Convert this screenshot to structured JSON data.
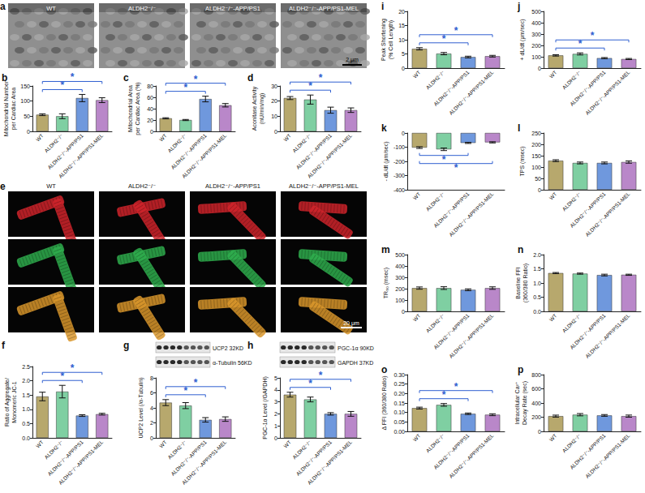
{
  "image_panels": [
    {
      "panel": "a",
      "labels": [
        "WT",
        "ALDH2⁻/⁻",
        "ALDH2⁻/⁻-APP/PS1",
        "ALDH2⁻/⁻-APP/PS1-MEL"
      ],
      "scale_bar": "2 μm"
    },
    {
      "panel": "e",
      "labels": [
        "WT",
        "ALDH2⁻/⁻",
        "ALDH2⁻/⁻-APP/PS1",
        "ALDH2⁻/⁻-APP/PS1-MEL"
      ],
      "scale_bar": "20 μm"
    }
  ],
  "chart_data": [
    {
      "panel": "b",
      "type": "bar",
      "ylabel": "Mitochondrial Number\nper Cardiac Area",
      "categories": [
        "WT",
        "ALDH2⁻/⁻",
        "ALDH2⁻/⁻-APP/PS1",
        "ALDH2⁻/⁻-APP/PS1-MEL"
      ],
      "values": [
        55,
        50,
        110,
        103
      ],
      "errors": [
        3,
        8,
        12,
        8
      ],
      "colors": [
        "#b7a86d",
        "#7fcfa2",
        "#6f98dd",
        "#b987c9"
      ],
      "ylim": [
        0,
        150
      ],
      "yticks": [
        0,
        50,
        100,
        150
      ],
      "grid": false,
      "significance": [
        {
          "between": [
            "WT",
            "ALDH2⁻/⁻-APP/PS1"
          ],
          "label": "*"
        },
        {
          "between": [
            "WT",
            "ALDH2⁻/⁻-APP/PS1-MEL"
          ],
          "label": "*"
        }
      ]
    },
    {
      "panel": "c",
      "type": "bar",
      "ylabel": "Mitochondrial Area\nper Cardiac Area (%)",
      "categories": [
        "WT",
        "ALDH2⁻/⁻",
        "ALDH2⁻/⁻-APP/PS1",
        "ALDH2⁻/⁻-APP/PS1-MEL"
      ],
      "values": [
        23,
        20,
        57,
        46
      ],
      "errors": [
        1,
        1,
        5,
        3
      ],
      "colors": [
        "#b7a86d",
        "#7fcfa2",
        "#6f98dd",
        "#b987c9"
      ],
      "ylim": [
        0,
        80
      ],
      "yticks": [
        0,
        20,
        40,
        60,
        80
      ],
      "grid": false,
      "significance": [
        {
          "between": [
            "WT",
            "ALDH2⁻/⁻-APP/PS1"
          ],
          "label": "*"
        },
        {
          "between": [
            "WT",
            "ALDH2⁻/⁻-APP/PS1-MEL"
          ],
          "label": "*"
        }
      ]
    },
    {
      "panel": "d",
      "type": "bar",
      "ylabel": "Aconitase Activity\n(nU/min/mg)",
      "categories": [
        "WT",
        "ALDH2⁻/⁻",
        "ALDH2⁻/⁻-APP/PS1",
        "ALDH2⁻/⁻-APP/PS1-MEL"
      ],
      "values": [
        22,
        21,
        14,
        14
      ],
      "errors": [
        1,
        3,
        2,
        1.5
      ],
      "colors": [
        "#b7a86d",
        "#7fcfa2",
        "#6f98dd",
        "#b987c9"
      ],
      "ylim": [
        0,
        30
      ],
      "yticks": [
        0,
        10,
        20,
        30
      ],
      "grid": false,
      "significance": [
        {
          "between": [
            "WT",
            "ALDH2⁻/⁻-APP/PS1"
          ],
          "label": "*"
        },
        {
          "between": [
            "WT",
            "ALDH2⁻/⁻-APP/PS1-MEL"
          ],
          "label": "*"
        }
      ]
    },
    {
      "panel": "f",
      "type": "bar",
      "ylabel": "Ratio of Aggregate/\nMonomeric JC-1",
      "categories": [
        "WT",
        "ALDH2⁻/⁻",
        "ALDH2⁻/⁻-APP/PS1",
        "ALDH2⁻/⁻-APP/PS1-MEL"
      ],
      "values": [
        1.45,
        1.62,
        0.78,
        0.83
      ],
      "errors": [
        0.15,
        0.22,
        0.03,
        0.03
      ],
      "colors": [
        "#b7a86d",
        "#7fcfa2",
        "#6f98dd",
        "#b987c9"
      ],
      "ylim": [
        0,
        2.5
      ],
      "yticks": [
        {
          "value": 0,
          "label": "0.0"
        },
        0.5,
        {
          "value": 1,
          "label": "1.0"
        },
        1.5,
        {
          "value": 2,
          "label": "2.0"
        },
        2.5
      ],
      "grid": false,
      "significance": [
        {
          "between": [
            "WT",
            "ALDH2⁻/⁻-APP/PS1"
          ],
          "label": "*"
        },
        {
          "between": [
            "WT",
            "ALDH2⁻/⁻-APP/PS1-MEL"
          ],
          "label": "*"
        }
      ]
    },
    {
      "panel": "g",
      "type": "bar",
      "ylabel": "UCP2 Level (/α-Tubulin)",
      "blot_labels": [
        "UCP2 32KD",
        "α-Tubulin 56KD"
      ],
      "categories": [
        "WT",
        "ALDH2⁻/⁻",
        "ALDH2⁻/⁻-APP/PS1",
        "ALDH2⁻/⁻-APP/PS1-MEL"
      ],
      "values": [
        4.7,
        4.3,
        2.4,
        2.5
      ],
      "errors": [
        0.4,
        0.4,
        0.3,
        0.3
      ],
      "colors": [
        "#b7a86d",
        "#7fcfa2",
        "#6f98dd",
        "#b987c9"
      ],
      "ylim": [
        0,
        8
      ],
      "yticks": [
        0,
        2,
        4,
        6,
        8
      ],
      "grid": false,
      "significance": [
        {
          "between": [
            "WT",
            "ALDH2⁻/⁻-APP/PS1"
          ],
          "label": "*"
        },
        {
          "between": [
            "WT",
            "ALDH2⁻/⁻-APP/PS1-MEL"
          ],
          "label": "*"
        }
      ]
    },
    {
      "panel": "h",
      "type": "bar",
      "ylabel": "PGC-1α Level (/GAPDH)",
      "blot_labels": [
        "PGC-1α 90KD",
        "GAPDH 37KD"
      ],
      "categories": [
        "WT",
        "ALDH2⁻/⁻",
        "ALDH2⁻/⁻-APP/PS1",
        "ALDH2⁻/⁻-APP/PS1-MEL"
      ],
      "values": [
        3.6,
        3.2,
        2.0,
        2.0
      ],
      "errors": [
        0.2,
        0.2,
        0.1,
        0.2
      ],
      "colors": [
        "#b7a86d",
        "#7fcfa2",
        "#6f98dd",
        "#b987c9"
      ],
      "ylim": [
        0,
        5
      ],
      "yticks": [
        0,
        1,
        2,
        3,
        4,
        5
      ],
      "grid": false,
      "significance": [
        {
          "between": [
            "WT",
            "ALDH2⁻/⁻-APP/PS1"
          ],
          "label": "*"
        },
        {
          "between": [
            "WT",
            "ALDH2⁻/⁻-APP/PS1-MEL"
          ],
          "label": "*"
        }
      ]
    },
    {
      "panel": "i",
      "type": "bar",
      "ylabel": "Peak Shortening\n(% Cell Length)",
      "categories": [
        "WT",
        "ALDH2⁻/⁻",
        "ALDH2⁻/⁻-APP/PS1",
        "ALDH2⁻/⁻-APP/PS1-MEL"
      ],
      "values": [
        6.8,
        5.1,
        3.9,
        4.2
      ],
      "errors": [
        0.4,
        0.4,
        0.3,
        0.3
      ],
      "colors": [
        "#b7a86d",
        "#7fcfa2",
        "#6f98dd",
        "#b987c9"
      ],
      "ylim": [
        0,
        20
      ],
      "yticks": [
        0,
        5,
        10,
        15,
        20
      ],
      "grid": false,
      "significance": [
        {
          "between": [
            "WT",
            "ALDH2⁻/⁻-APP/PS1"
          ],
          "label": "*"
        },
        {
          "between": [
            "WT",
            "ALDH2⁻/⁻-APP/PS1-MEL"
          ],
          "label": "*"
        }
      ]
    },
    {
      "panel": "j",
      "type": "bar",
      "ylabel": "+ dL/dt (μm/sec)",
      "categories": [
        "WT",
        "ALDH2⁻/⁻",
        "ALDH2⁻/⁻-APP/PS1",
        "ALDH2⁻/⁻-APP/PS1-MEL"
      ],
      "values": [
        112,
        125,
        88,
        80
      ],
      "errors": [
        6,
        9,
        5,
        5
      ],
      "colors": [
        "#b7a86d",
        "#7fcfa2",
        "#6f98dd",
        "#b987c9"
      ],
      "ylim": [
        0,
        500
      ],
      "yticks": [
        0,
        100,
        200,
        300,
        400,
        500
      ],
      "grid": false,
      "significance": [
        {
          "between": [
            "WT",
            "ALDH2⁻/⁻-APP/PS1"
          ],
          "label": "*"
        },
        {
          "between": [
            "WT",
            "ALDH2⁻/⁻-APP/PS1-MEL"
          ],
          "label": "*"
        }
      ]
    },
    {
      "panel": "k",
      "type": "bar",
      "ylabel": "- dL/dt (μm/sec)",
      "categories": [
        "WT",
        "ALDH2⁻/⁻",
        "ALDH2⁻/⁻-APP/PS1",
        "ALDH2⁻/⁻-APP/PS1-MEL"
      ],
      "values": [
        -103,
        -115,
        -70,
        -66
      ],
      "errors": [
        6,
        9,
        4,
        4
      ],
      "colors": [
        "#b7a86d",
        "#7fcfa2",
        "#6f98dd",
        "#b987c9"
      ],
      "ylim": [
        -400,
        0
      ],
      "yticks": [
        -400,
        -300,
        -200,
        -100,
        0
      ],
      "grid": false,
      "significance": [
        {
          "between": [
            "WT",
            "ALDH2⁻/⁻-APP/PS1"
          ],
          "label": "*"
        },
        {
          "between": [
            "WT",
            "ALDH2⁻/⁻-APP/PS1-MEL"
          ],
          "label": "*"
        }
      ]
    },
    {
      "panel": "l",
      "type": "bar",
      "ylabel": "TPS (msec)",
      "categories": [
        "WT",
        "ALDH2⁻/⁻",
        "ALDH2⁻/⁻-APP/PS1",
        "ALDH2⁻/⁻-APP/PS1-MEL"
      ],
      "values": [
        128,
        118,
        118,
        122
      ],
      "errors": [
        4,
        4,
        4,
        5
      ],
      "colors": [
        "#b7a86d",
        "#7fcfa2",
        "#6f98dd",
        "#b987c9"
      ],
      "ylim": [
        0,
        250
      ],
      "yticks": [
        0,
        50,
        100,
        150,
        200,
        250
      ],
      "grid": false
    },
    {
      "panel": "m",
      "type": "bar",
      "ylabel": "TR₉₀ (msec)",
      "categories": [
        "WT",
        "ALDH2⁻/⁻",
        "ALDH2⁻/⁻-APP/PS1",
        "ALDH2⁻/⁻-APP/PS1-MEL"
      ],
      "values": [
        205,
        205,
        190,
        205
      ],
      "errors": [
        10,
        12,
        8,
        11
      ],
      "colors": [
        "#b7a86d",
        "#7fcfa2",
        "#6f98dd",
        "#b987c9"
      ],
      "ylim": [
        0,
        500
      ],
      "yticks": [
        0,
        100,
        200,
        300,
        400,
        500
      ],
      "grid": false
    },
    {
      "panel": "n",
      "type": "bar",
      "ylabel": "Baseline FFI\n(360/380 Ratio)",
      "categories": [
        "WT",
        "ALDH2⁻/⁻",
        "ALDH2⁻/⁻-APP/PS1",
        "ALDH2⁻/⁻-APP/PS1-MEL"
      ],
      "values": [
        1.35,
        1.33,
        1.28,
        1.29
      ],
      "errors": [
        0.02,
        0.02,
        0.03,
        0.02
      ],
      "colors": [
        "#b7a86d",
        "#7fcfa2",
        "#6f98dd",
        "#b987c9"
      ],
      "ylim": [
        0,
        2
      ],
      "yticks": [
        {
          "value": 0,
          "label": "0.0"
        },
        0.5,
        {
          "value": 1,
          "label": "1.0"
        },
        1.5,
        {
          "value": 2,
          "label": "2.0"
        }
      ],
      "grid": false
    },
    {
      "panel": "o",
      "type": "bar",
      "ylabel": "Δ FFI (360/380 Ratio)",
      "categories": [
        "WT",
        "ALDH2⁻/⁻",
        "ALDH2⁻/⁻-APP/PS1",
        "ALDH2⁻/⁻-APP/PS1-MEL"
      ],
      "values": [
        0.123,
        0.14,
        0.093,
        0.088
      ],
      "errors": [
        0.005,
        0.007,
        0.004,
        0.005
      ],
      "colors": [
        "#b7a86d",
        "#7fcfa2",
        "#6f98dd",
        "#b987c9"
      ],
      "ylim": [
        0,
        0.3
      ],
      "yticks": [
        {
          "value": 0,
          "label": "0.00"
        },
        {
          "value": 0.05,
          "label": "0.05"
        },
        {
          "value": 0.1,
          "label": "0.10"
        },
        {
          "value": 0.15,
          "label": "0.15"
        },
        {
          "value": 0.2,
          "label": "0.20"
        },
        {
          "value": 0.25,
          "label": "0.25"
        },
        {
          "value": 0.3,
          "label": "0.30"
        }
      ],
      "grid": false,
      "significance": [
        {
          "between": [
            "WT",
            "ALDH2⁻/⁻-APP/PS1"
          ],
          "label": "*"
        },
        {
          "between": [
            "WT",
            "ALDH2⁻/⁻-APP/PS1-MEL"
          ],
          "label": "*"
        }
      ]
    },
    {
      "panel": "p",
      "type": "bar",
      "ylabel": "Intracellular Ca²⁺\nDecay Rate (sec)",
      "categories": [
        "WT",
        "ALDH2⁻/⁻",
        "ALDH2⁻/⁻-APP/PS1",
        "ALDH2⁻/⁻-APP/PS1-MEL"
      ],
      "values": [
        215,
        235,
        225,
        215
      ],
      "errors": [
        14,
        16,
        12,
        15
      ],
      "colors": [
        "#b7a86d",
        "#7fcfa2",
        "#6f98dd",
        "#b987c9"
      ],
      "ylim": [
        0,
        800
      ],
      "yticks": [
        0,
        200,
        400,
        600,
        800
      ],
      "grid": false
    }
  ]
}
